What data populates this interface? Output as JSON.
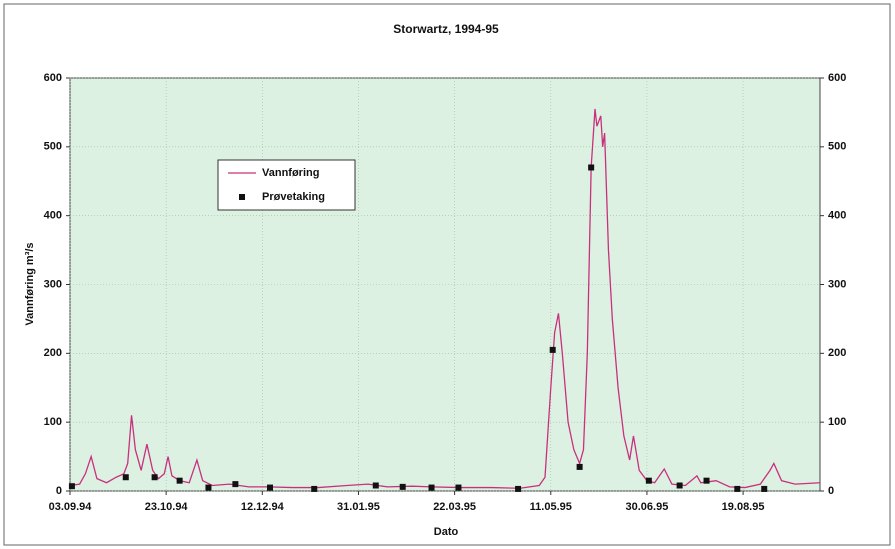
{
  "chart_data": {
    "type": "line",
    "title": "Storwartz, 1994-95",
    "x_label": "Dato",
    "y_label": "Vannføring m³/s",
    "xlim": [
      "1994-09-03",
      "1995-09-28"
    ],
    "ylim": [
      0,
      600
    ],
    "y2lim": [
      0,
      600
    ],
    "yticks": [
      0,
      100,
      200,
      300,
      400,
      500,
      600
    ],
    "y2ticks": [
      0,
      100,
      200,
      300,
      400,
      500,
      600
    ],
    "xticks": [
      {
        "value": "1994-09-03",
        "label": "03.09.94"
      },
      {
        "value": "1994-10-23",
        "label": "23.10.94"
      },
      {
        "value": "1994-12-12",
        "label": "12.12.94"
      },
      {
        "value": "1995-01-31",
        "label": "31.01.95"
      },
      {
        "value": "1995-03-22",
        "label": "22.03.95"
      },
      {
        "value": "1995-05-11",
        "label": "11.05.95"
      },
      {
        "value": "1995-06-30",
        "label": "30.06.95"
      },
      {
        "value": "1995-08-19",
        "label": "19.08.95"
      }
    ],
    "grid": true,
    "legend": "upper left",
    "series": [
      {
        "name": "Vannføring",
        "type": "line",
        "color": "#c8307e",
        "x": [
          "1994-09-03",
          "1994-09-08",
          "1994-09-11",
          "1994-09-14",
          "1994-09-17",
          "1994-09-22",
          "1994-09-27",
          "1994-10-01",
          "1994-10-03",
          "1994-10-05",
          "1994-10-07",
          "1994-10-10",
          "1994-10-13",
          "1994-10-16",
          "1994-10-19",
          "1994-10-22",
          "1994-10-24",
          "1994-10-26",
          "1994-10-30",
          "1994-11-04",
          "1994-11-08",
          "1994-11-11",
          "1994-11-16",
          "1994-11-25",
          "1994-12-05",
          "1994-12-15",
          "1994-12-28",
          "1995-01-10",
          "1995-01-25",
          "1995-02-05",
          "1995-02-15",
          "1995-02-28",
          "1995-03-10",
          "1995-03-25",
          "1995-04-10",
          "1995-04-25",
          "1995-05-05",
          "1995-05-08",
          "1995-05-11",
          "1995-05-13",
          "1995-05-15",
          "1995-05-17",
          "1995-05-20",
          "1995-05-23",
          "1995-05-26",
          "1995-05-28",
          "1995-05-30",
          "1995-06-01",
          "1995-06-03",
          "1995-06-04",
          "1995-06-06",
          "1995-06-07",
          "1995-06-08",
          "1995-06-10",
          "1995-06-12",
          "1995-06-15",
          "1995-06-18",
          "1995-06-21",
          "1995-06-23",
          "1995-06-26",
          "1995-06-30",
          "1995-07-04",
          "1995-07-09",
          "1995-07-13",
          "1995-07-20",
          "1995-07-26",
          "1995-07-28",
          "1995-08-05",
          "1995-08-12",
          "1995-08-20",
          "1995-08-28",
          "1995-09-02",
          "1995-09-04",
          "1995-09-08",
          "1995-09-15",
          "1995-09-28"
        ],
        "values": [
          8,
          10,
          25,
          50,
          18,
          12,
          20,
          25,
          40,
          110,
          60,
          30,
          68,
          30,
          18,
          25,
          50,
          22,
          15,
          12,
          45,
          15,
          8,
          10,
          6,
          6,
          5,
          5,
          8,
          10,
          6,
          7,
          6,
          5,
          5,
          4,
          8,
          20,
          150,
          230,
          258,
          200,
          100,
          60,
          40,
          60,
          200,
          470,
          555,
          530,
          545,
          500,
          520,
          350,
          250,
          150,
          80,
          45,
          80,
          30,
          15,
          12,
          32,
          10,
          8,
          22,
          12,
          15,
          6,
          5,
          10,
          30,
          40,
          15,
          10,
          12
        ]
      },
      {
        "name": "Prøvetaking",
        "type": "scatter",
        "color": "#111111",
        "x": [
          "1994-09-04",
          "1994-10-02",
          "1994-10-17",
          "1994-10-30",
          "1994-11-14",
          "1994-11-28",
          "1994-12-16",
          "1995-01-08",
          "1995-02-09",
          "1995-02-23",
          "1995-03-10",
          "1995-03-24",
          "1995-04-24",
          "1995-05-12",
          "1995-05-26",
          "1995-06-01",
          "1995-07-01",
          "1995-07-17",
          "1995-07-31",
          "1995-08-16",
          "1995-08-30"
        ],
        "values": [
          7,
          20,
          20,
          15,
          5,
          10,
          5,
          3,
          8,
          6,
          5,
          5,
          3,
          205,
          35,
          470,
          15,
          8,
          15,
          3,
          3
        ]
      }
    ]
  }
}
